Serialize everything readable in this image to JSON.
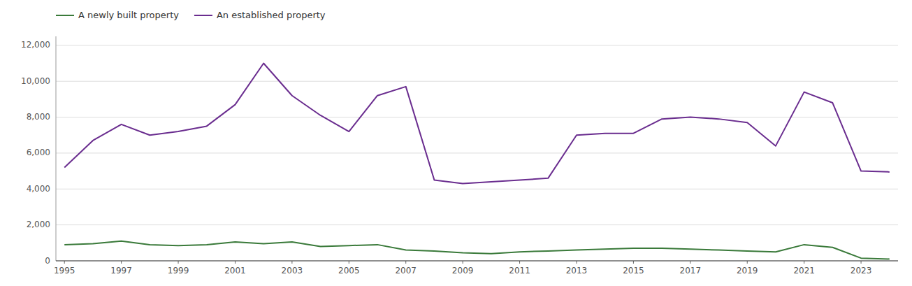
{
  "chart_data": {
    "type": "line",
    "x": [
      1995,
      1996,
      1997,
      1998,
      1999,
      2000,
      2001,
      2002,
      2003,
      2004,
      2005,
      2006,
      2007,
      2008,
      2009,
      2010,
      2011,
      2012,
      2013,
      2014,
      2015,
      2016,
      2017,
      2018,
      2019,
      2020,
      2021,
      2022,
      2023,
      2024
    ],
    "series": [
      {
        "name": "A newly built property",
        "color": "#3a7a3a",
        "values": [
          900,
          950,
          1100,
          900,
          850,
          900,
          1050,
          950,
          1050,
          800,
          850,
          900,
          600,
          550,
          450,
          400,
          500,
          550,
          600,
          650,
          700,
          700,
          650,
          600,
          550,
          500,
          900,
          750,
          150,
          100
        ]
      },
      {
        "name": "An established property",
        "color": "#6a2d8f",
        "values": [
          5200,
          6700,
          7600,
          7000,
          7200,
          7500,
          8700,
          11000,
          9200,
          8100,
          7200,
          9200,
          9700,
          4500,
          4300,
          4400,
          4500,
          4600,
          7000,
          7100,
          7100,
          7900,
          8000,
          7900,
          7700,
          6400,
          9400,
          8800,
          5000,
          4950
        ]
      }
    ],
    "xlim": [
      1994.7,
      2024.3
    ],
    "xticks": [
      1995,
      1997,
      1999,
      2001,
      2003,
      2005,
      2007,
      2009,
      2011,
      2013,
      2015,
      2017,
      2019,
      2021,
      2023
    ],
    "ylim": [
      0,
      12500
    ],
    "yticks": [
      0,
      {
        "value": 2000,
        "label": "2,000"
      },
      {
        "value": 4000,
        "label": "4,000"
      },
      {
        "value": 6000,
        "label": "6,000"
      },
      {
        "value": 8000,
        "label": "8,000"
      },
      {
        "value": 10000,
        "label": "10,000"
      },
      {
        "value": 12000,
        "label": "12,000"
      }
    ],
    "grid": true,
    "legend": "top-left"
  }
}
